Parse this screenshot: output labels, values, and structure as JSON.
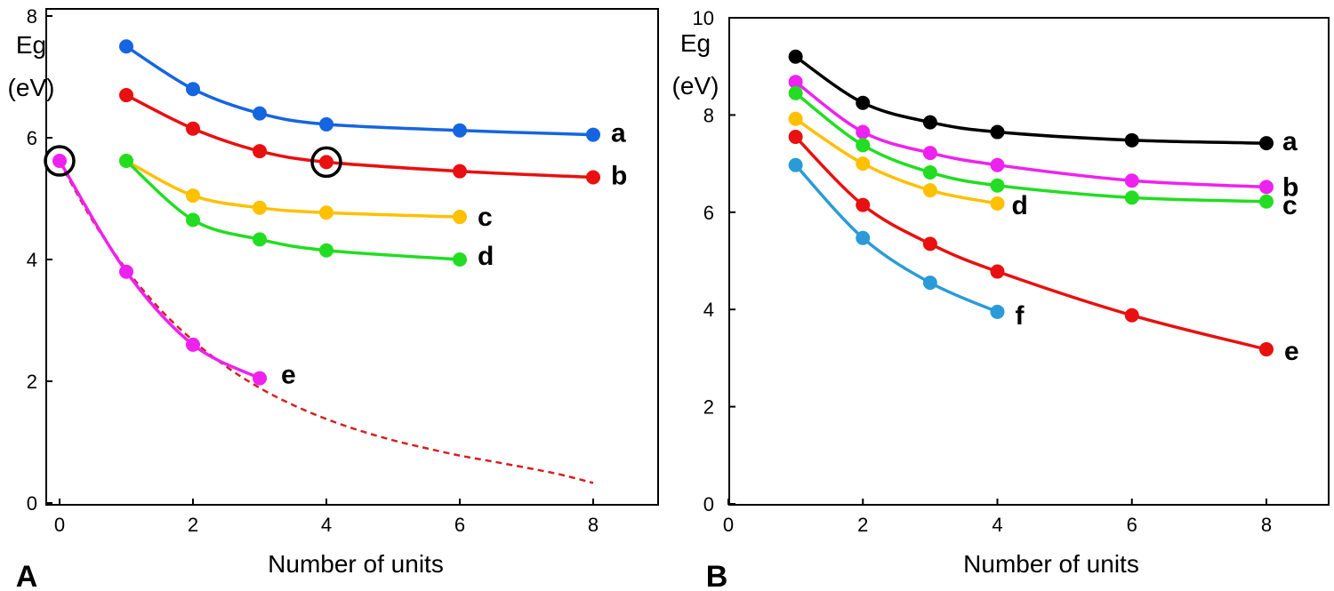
{
  "chart_data": [
    {
      "type": "line",
      "panel_label": "A",
      "xlabel": "Number of units",
      "ylabel_line1": "Eg",
      "ylabel_line2": "(eV)",
      "xlim": [
        0,
        9
      ],
      "ylim": [
        0,
        8
      ],
      "xticks": [
        "0",
        "2",
        "4",
        "6",
        "8"
      ],
      "yticks": [
        "0",
        "2",
        "4",
        "6",
        "8"
      ],
      "series": [
        {
          "name": "a",
          "color": "#1565e0",
          "x": [
            1,
            2,
            3,
            4,
            6,
            8
          ],
          "y": [
            7.5,
            6.8,
            6.4,
            6.22,
            6.12,
            6.05
          ]
        },
        {
          "name": "b",
          "color": "#e81010",
          "x": [
            1,
            2,
            3,
            4,
            6,
            8
          ],
          "y": [
            6.7,
            6.15,
            5.78,
            5.6,
            5.45,
            5.35
          ]
        },
        {
          "name": "c",
          "color": "#ffc000",
          "x": [
            1,
            2,
            3,
            4,
            6
          ],
          "y": [
            5.62,
            5.05,
            4.85,
            4.77,
            4.7
          ]
        },
        {
          "name": "d",
          "color": "#22dd22",
          "x": [
            1,
            2,
            3,
            4,
            6
          ],
          "y": [
            5.62,
            4.65,
            4.33,
            4.15,
            4.0
          ]
        },
        {
          "name": "e",
          "color": "#ee22ee",
          "x": [
            0,
            1,
            2,
            3
          ],
          "y": [
            5.62,
            3.8,
            2.6,
            2.05
          ]
        }
      ],
      "fit_curve": {
        "color": "#d42020",
        "style": "dashed",
        "x": [
          0,
          0.5,
          1,
          1.5,
          2,
          2.5,
          3,
          3.5,
          4,
          4.5,
          5,
          5.5,
          6,
          6.5,
          7,
          7.5,
          8
        ],
        "y": [
          5.6,
          4.63,
          3.84,
          3.19,
          2.67,
          2.24,
          1.89,
          1.61,
          1.38,
          1.19,
          1.03,
          0.9,
          0.78,
          0.68,
          0.58,
          0.47,
          0.33
        ]
      },
      "highlighted_points": [
        {
          "x": 0,
          "y": 5.62
        },
        {
          "x": 4,
          "y": 5.6
        }
      ]
    },
    {
      "type": "line",
      "panel_label": "B",
      "xlabel": "Number of units",
      "ylabel_line1": "Eg",
      "ylabel_line2": "(eV)",
      "xlim": [
        0,
        9
      ],
      "ylim": [
        0,
        10
      ],
      "xticks": [
        "0",
        "2",
        "4",
        "6",
        "8"
      ],
      "yticks": [
        "0",
        "2",
        "4",
        "6",
        "8",
        "10"
      ],
      "series": [
        {
          "name": "a",
          "color": "#000000",
          "x": [
            1,
            2,
            3,
            4,
            6,
            8
          ],
          "y": [
            9.2,
            8.25,
            7.85,
            7.65,
            7.48,
            7.42
          ]
        },
        {
          "name": "b",
          "color": "#ee22ee",
          "x": [
            1,
            2,
            3,
            4,
            6,
            8
          ],
          "y": [
            8.68,
            7.65,
            7.22,
            6.97,
            6.65,
            6.52
          ]
        },
        {
          "name": "c",
          "color": "#22dd22",
          "x": [
            1,
            2,
            3,
            4,
            6,
            8
          ],
          "y": [
            8.45,
            7.38,
            6.82,
            6.55,
            6.3,
            6.22
          ]
        },
        {
          "name": "d",
          "color": "#ffc000",
          "x": [
            1,
            2,
            3,
            4
          ],
          "y": [
            7.92,
            7.0,
            6.45,
            6.18
          ]
        },
        {
          "name": "e",
          "color": "#e81010",
          "x": [
            1,
            2,
            3,
            4,
            6,
            8
          ],
          "y": [
            7.55,
            6.15,
            5.35,
            4.78,
            3.88,
            3.18
          ]
        },
        {
          "name": "f",
          "color": "#2a9bd8",
          "x": [
            1,
            2,
            3,
            4
          ],
          "y": [
            6.97,
            5.47,
            4.55,
            3.95
          ]
        }
      ]
    }
  ]
}
